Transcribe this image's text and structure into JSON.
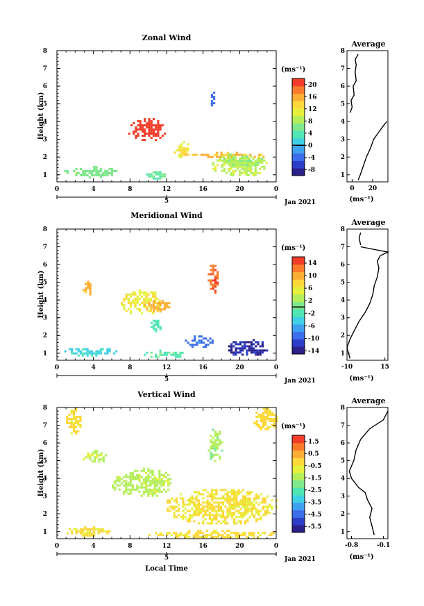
{
  "chart_data": [
    {
      "type": "heatmap",
      "title": "Zonal Wind",
      "ylabel": "Height (km)",
      "xlabel": "",
      "xlim": [
        0,
        24
      ],
      "ylim": [
        0.6,
        8
      ],
      "xticks": [
        "0",
        "4",
        "8",
        "12",
        "16",
        "20",
        "0"
      ],
      "yticks": [
        "1",
        "2",
        "3",
        "4",
        "5",
        "6",
        "7",
        "8"
      ],
      "day_label": "5",
      "date_label": "Jan 2021",
      "colorbar": {
        "unit": "(ms⁻¹)",
        "ticks": [
          "20",
          "16",
          "12",
          "8",
          "4",
          "0",
          "-4",
          "-8"
        ],
        "range": [
          -10,
          22
        ],
        "zero_line": 0
      },
      "features": [
        {
          "x": [
            7.8,
            11.8
          ],
          "y": [
            3.0,
            4.2
          ],
          "value": 22
        },
        {
          "x": [
            12.8,
            14.5
          ],
          "y": [
            2.0,
            2.9
          ],
          "value": 12
        },
        {
          "x": [
            14.0,
            23.0
          ],
          "y": [
            2.0,
            2.3
          ],
          "value": 15
        },
        {
          "x": [
            17.0,
            23.0
          ],
          "y": [
            1.0,
            2.1
          ],
          "value": 9
        },
        {
          "x": [
            17.0,
            22.5
          ],
          "y": [
            1.5,
            2.2
          ],
          "value": 8
        },
        {
          "x": [
            0.8,
            6.5
          ],
          "y": [
            0.9,
            1.5
          ],
          "value": 6
        },
        {
          "x": [
            9.5,
            12.2
          ],
          "y": [
            0.8,
            1.2
          ],
          "value": 5
        },
        {
          "x": [
            16.6,
            17.2
          ],
          "y": [
            4.9,
            5.8
          ],
          "value": -4
        }
      ],
      "profile": {
        "title": "Average",
        "xlabel": "(ms⁻¹)",
        "xticks": [
          "0",
          "20"
        ],
        "xlim": [
          -5,
          35
        ],
        "points": [
          [
            6,
            0.7
          ],
          [
            8,
            1.0
          ],
          [
            11,
            1.5
          ],
          [
            14,
            2.0
          ],
          [
            18,
            2.5
          ],
          [
            21,
            3.0
          ],
          [
            26,
            3.4
          ],
          [
            31,
            3.8
          ],
          [
            34,
            4.0
          ]
        ],
        "points_upper": [
          [
            -2,
            4.5
          ],
          [
            0,
            4.8
          ],
          [
            -1,
            5.2
          ],
          [
            2,
            5.5
          ],
          [
            1,
            6.0
          ],
          [
            4,
            6.3
          ],
          [
            3,
            6.8
          ],
          [
            4,
            7.2
          ],
          [
            3,
            7.5
          ],
          [
            6,
            7.8
          ]
        ]
      }
    },
    {
      "type": "heatmap",
      "title": "Meridional Wind",
      "ylabel": "Height (km)",
      "xlabel": "",
      "xlim": [
        0,
        24
      ],
      "ylim": [
        0.6,
        8
      ],
      "xticks": [
        "0",
        "4",
        "8",
        "12",
        "16",
        "20",
        "0"
      ],
      "yticks": [
        "1",
        "2",
        "3",
        "4",
        "5",
        "6",
        "7",
        "8"
      ],
      "day_label": "5",
      "date_label": "Jan 2021",
      "colorbar": {
        "unit": "(ms⁻¹)",
        "ticks": [
          "14",
          "10",
          "6",
          "2",
          "-2",
          "-6",
          "-10",
          "-14"
        ],
        "range": [
          -15,
          16
        ],
        "zero_line": 0
      },
      "features": [
        {
          "x": [
            2.8,
            3.7
          ],
          "y": [
            4.3,
            5.2
          ],
          "value": 10
        },
        {
          "x": [
            7.0,
            11.5
          ],
          "y": [
            3.2,
            4.6
          ],
          "value": 6
        },
        {
          "x": [
            9.5,
            12.5
          ],
          "y": [
            3.4,
            4.0
          ],
          "value": 10
        },
        {
          "x": [
            16.5,
            17.5
          ],
          "y": [
            4.4,
            6.1
          ],
          "value": 13
        },
        {
          "x": [
            18.5,
            23.0
          ],
          "y": [
            0.9,
            1.8
          ],
          "value": -13
        },
        {
          "x": [
            14.0,
            17.0
          ],
          "y": [
            1.3,
            2.0
          ],
          "value": -9
        },
        {
          "x": [
            0.8,
            6.5
          ],
          "y": [
            0.9,
            1.4
          ],
          "value": -4
        },
        {
          "x": [
            9.5,
            14.0
          ],
          "y": [
            0.8,
            1.2
          ],
          "value": -1
        },
        {
          "x": [
            10.0,
            11.5
          ],
          "y": [
            2.2,
            3.0
          ],
          "value": -2
        }
      ],
      "profile": {
        "title": "Average",
        "xlabel": "(ms⁻¹)",
        "xticks": [
          "-10",
          "15"
        ],
        "xlim": [
          -10,
          17
        ],
        "points": [
          [
            -8,
            0.7
          ],
          [
            -10,
            1.3
          ],
          [
            -8,
            1.8
          ],
          [
            -5,
            2.3
          ],
          [
            -2,
            2.8
          ],
          [
            2,
            3.3
          ],
          [
            5,
            3.8
          ],
          [
            7,
            4.3
          ],
          [
            8,
            4.8
          ],
          [
            10,
            5.3
          ],
          [
            11,
            5.8
          ],
          [
            10,
            6.2
          ],
          [
            12,
            6.5
          ],
          [
            17,
            6.7
          ],
          [
            -1,
            7.0
          ]
        ],
        "points_upper": [
          [
            -1,
            7.1
          ],
          [
            -2,
            7.5
          ],
          [
            -1,
            7.8
          ]
        ]
      }
    },
    {
      "type": "heatmap",
      "title": "Vertical Wind",
      "ylabel": "Height (km)",
      "xlabel": "Local Time",
      "xlim": [
        0,
        24
      ],
      "ylim": [
        0.6,
        8
      ],
      "xticks": [
        "0",
        "4",
        "8",
        "12",
        "16",
        "20",
        "0"
      ],
      "yticks": [
        "1",
        "2",
        "3",
        "4",
        "5",
        "6",
        "7",
        "8"
      ],
      "day_label": "5",
      "date_label": "Jan 2021",
      "colorbar": {
        "unit": "(ms⁻¹)",
        "ticks": [
          "1.5",
          "0.5",
          "-0.5",
          "-1.5",
          "-2.5",
          "-3.5",
          "-4.5",
          "-5.5"
        ],
        "range": [
          -6,
          2
        ],
        "zero_line": null
      },
      "features": [
        {
          "x": [
            1.0,
            2.5
          ],
          "y": [
            6.5,
            8.0
          ],
          "value": -0.3
        },
        {
          "x": [
            2.8,
            5.3
          ],
          "y": [
            4.9,
            5.6
          ],
          "value": -1.2
        },
        {
          "x": [
            6.0,
            12.5
          ],
          "y": [
            3.0,
            4.6
          ],
          "value": -1.3
        },
        {
          "x": [
            16.5,
            18.0
          ],
          "y": [
            5.0,
            6.8
          ],
          "value": -1.5
        },
        {
          "x": [
            12.0,
            24.0
          ],
          "y": [
            1.5,
            3.4
          ],
          "value": -0.4
        },
        {
          "x": [
            0.8,
            6.0
          ],
          "y": [
            0.8,
            1.3
          ],
          "value": -0.3
        },
        {
          "x": [
            21.5,
            24.0
          ],
          "y": [
            6.8,
            8.0
          ],
          "value": -0.2
        },
        {
          "x": [
            10.0,
            24.0
          ],
          "y": [
            0.7,
            1.1
          ],
          "value": -0.3
        }
      ],
      "profile": {
        "title": "Average",
        "xlabel": "(ms⁻¹)",
        "xticks": [
          "-0.8",
          "-0.1"
        ],
        "xlim": [
          -0.9,
          0.0
        ],
        "points": [
          [
            -0.3,
            0.8
          ],
          [
            -0.35,
            1.3
          ],
          [
            -0.4,
            1.8
          ],
          [
            -0.35,
            2.3
          ],
          [
            -0.45,
            2.8
          ],
          [
            -0.5,
            3.2
          ],
          [
            -0.65,
            3.5
          ],
          [
            -0.8,
            4.0
          ],
          [
            -0.85,
            4.4
          ],
          [
            -0.75,
            5.0
          ],
          [
            -0.7,
            5.6
          ],
          [
            -0.6,
            6.2
          ],
          [
            -0.4,
            6.8
          ],
          [
            -0.1,
            7.3
          ],
          [
            0.0,
            7.8
          ]
        ],
        "points_upper": []
      }
    }
  ]
}
